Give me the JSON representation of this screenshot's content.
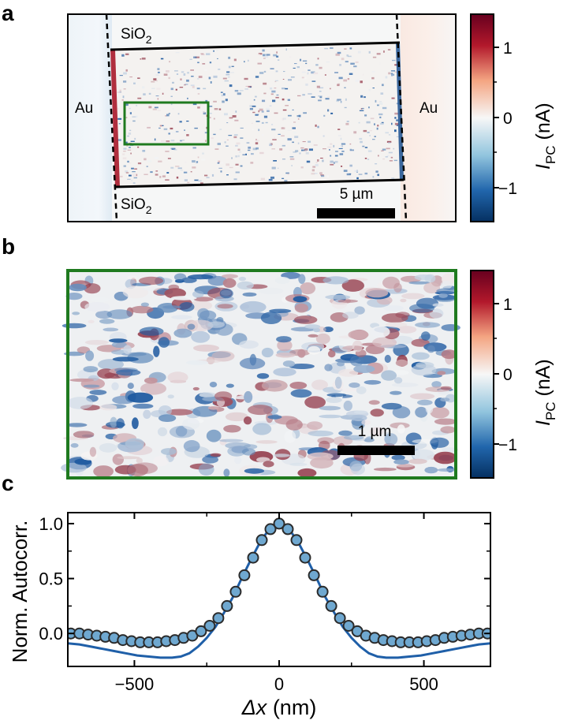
{
  "panel_labels": {
    "a": "a",
    "b": "b",
    "c": "c"
  },
  "panel_a": {
    "label_au_left": "Au",
    "label_au_right": "Au",
    "label_sio2_top": "SiO",
    "label_sio2_bottom": "SiO",
    "subscript_2": "2",
    "scalebar_label": "5 µm"
  },
  "panel_b": {
    "scalebar_label": "1 µm"
  },
  "colorbar": {
    "symbol": "I",
    "subscript": "PC",
    "unit": " (nA)",
    "ticks": [
      "1",
      "0",
      "−1"
    ],
    "range": [
      -1.5,
      1.5
    ],
    "colors": {
      "neg": "#1f5aa0",
      "zero": "#f7f7f7",
      "pos": "#7a0a1e"
    }
  },
  "colors": {
    "roi_green": "#1f7a1f",
    "fit_line": "#1f5fa8",
    "marker_fill": "#6fa8d0"
  },
  "chart_data": {
    "type": "line",
    "xlabel_symbol": "Δx",
    "xlabel_unit": " (nm)",
    "ylabel": "Norm. Autocorr.",
    "xlim": [
      -730,
      730
    ],
    "ylim": [
      -0.3,
      1.1
    ],
    "xticks": [
      -500,
      0,
      500
    ],
    "xtick_labels": [
      "−500",
      "0",
      "500"
    ],
    "yticks": [
      0.0,
      0.5,
      1.0
    ],
    "ytick_labels": [
      "0.0",
      "0.5",
      "1.0"
    ],
    "series": [
      {
        "name": "data",
        "style": "markers",
        "x": [
          -720,
          -690,
          -660,
          -630,
          -600,
          -570,
          -540,
          -510,
          -480,
          -450,
          -420,
          -390,
          -360,
          -330,
          -300,
          -270,
          -240,
          -210,
          -180,
          -150,
          -120,
          -90,
          -60,
          -30,
          0,
          30,
          60,
          90,
          120,
          150,
          180,
          210,
          240,
          270,
          300,
          330,
          360,
          390,
          420,
          450,
          480,
          510,
          540,
          570,
          600,
          630,
          660,
          690,
          720
        ],
        "y": [
          0.0,
          0.0,
          -0.01,
          -0.02,
          -0.03,
          -0.04,
          -0.06,
          -0.07,
          -0.08,
          -0.08,
          -0.08,
          -0.07,
          -0.06,
          -0.04,
          -0.02,
          0.02,
          0.07,
          0.14,
          0.25,
          0.38,
          0.53,
          0.69,
          0.85,
          0.95,
          1.0,
          0.95,
          0.85,
          0.69,
          0.53,
          0.38,
          0.25,
          0.14,
          0.07,
          0.02,
          -0.02,
          -0.04,
          -0.06,
          -0.07,
          -0.08,
          -0.08,
          -0.08,
          -0.07,
          -0.06,
          -0.04,
          -0.03,
          -0.02,
          -0.01,
          0.0,
          0.0
        ]
      },
      {
        "name": "fit",
        "style": "line",
        "x": [
          -730,
          -690,
          -650,
          -610,
          -570,
          -530,
          -490,
          -450,
          -410,
          -370,
          -340,
          -310,
          -280,
          -250,
          -220,
          -190,
          -160,
          -130,
          -100,
          -70,
          -40,
          -20,
          0,
          20,
          40,
          70,
          100,
          130,
          160,
          190,
          220,
          250,
          280,
          310,
          340,
          370,
          410,
          450,
          490,
          530,
          570,
          610,
          650,
          690,
          730
        ],
        "y": [
          -0.09,
          -0.1,
          -0.12,
          -0.14,
          -0.16,
          -0.18,
          -0.2,
          -0.21,
          -0.22,
          -0.22,
          -0.21,
          -0.18,
          -0.12,
          -0.04,
          0.06,
          0.19,
          0.33,
          0.5,
          0.66,
          0.81,
          0.93,
          0.98,
          1.0,
          0.98,
          0.93,
          0.81,
          0.66,
          0.5,
          0.33,
          0.19,
          0.06,
          -0.04,
          -0.12,
          -0.18,
          -0.21,
          -0.22,
          -0.22,
          -0.21,
          -0.2,
          -0.18,
          -0.16,
          -0.14,
          -0.12,
          -0.1,
          -0.09
        ]
      }
    ]
  }
}
